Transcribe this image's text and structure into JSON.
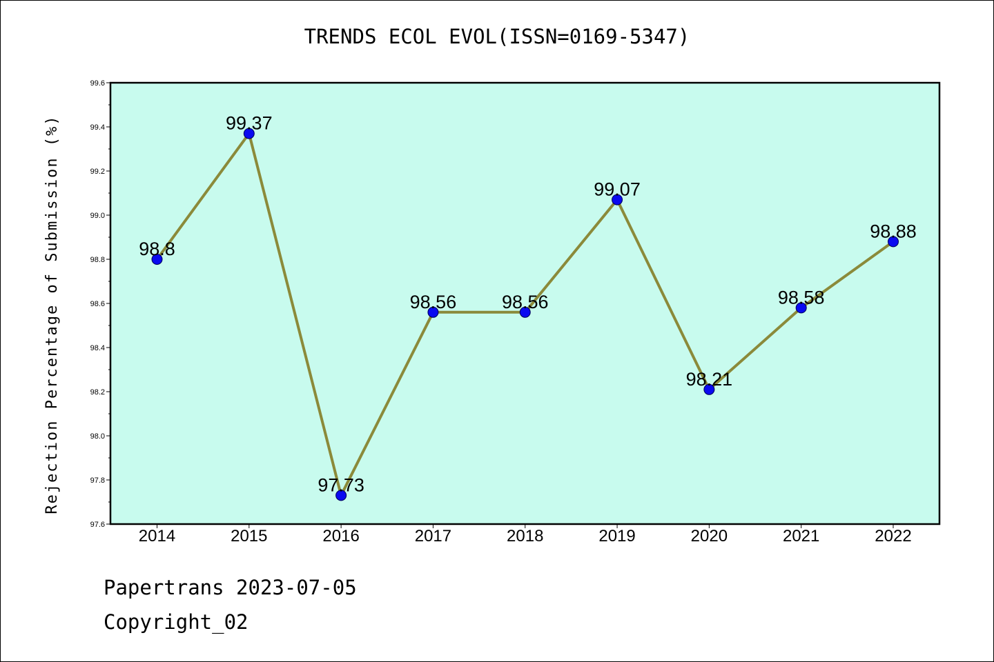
{
  "chart_data": {
    "type": "line",
    "title": "TRENDS ECOL EVOL(ISSN=0169-5347)",
    "ylabel": "Rejection Percentage of Submission (%)",
    "xlabel": "",
    "categories": [
      "2014",
      "2015",
      "2016",
      "2017",
      "2018",
      "2019",
      "2020",
      "2021",
      "2022"
    ],
    "values": [
      98.8,
      99.37,
      97.73,
      98.56,
      98.56,
      99.07,
      98.21,
      98.58,
      98.88
    ],
    "data_labels": [
      "98.8",
      "99.37",
      "97.73",
      "98.56",
      "98.56",
      "99.07",
      "98.21",
      "98.58",
      "98.88"
    ],
    "ylim": [
      97.6,
      99.6
    ],
    "yticks": [
      "97.6",
      "97.8",
      "98.0",
      "98.2",
      "98.4",
      "98.6",
      "98.8",
      "99.0",
      "99.2",
      "99.4",
      "99.6"
    ],
    "grid": false,
    "colors": {
      "plot_background": "#c8fbee",
      "line": "#8b8a3a",
      "marker": "#0a0af0",
      "axes": "#000000"
    }
  },
  "footer": {
    "line1": "Papertrans 2023-07-05",
    "line2": "Copyright_02"
  }
}
